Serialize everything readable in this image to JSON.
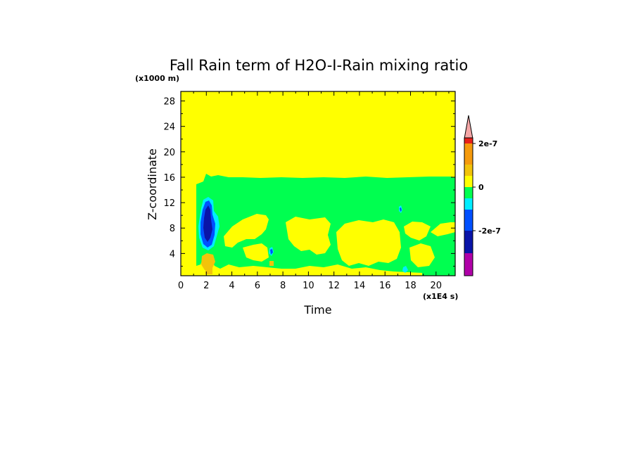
{
  "chart_data": {
    "type": "heatmap",
    "title": "Fall Rain term of H2O-I-Rain mixing ratio",
    "xlabel": "Time",
    "ylabel": "Z-coordinate",
    "x_unit": "(x1E4 s)",
    "y_unit": "(x1000 m)",
    "xlim": [
      0,
      21.5
    ],
    "ylim": [
      0.5,
      29.5
    ],
    "x_ticks": [
      "0",
      "2",
      "4",
      "6",
      "8",
      "10",
      "12",
      "14",
      "16",
      "18",
      "20"
    ],
    "y_ticks": [
      "4",
      "8",
      "12",
      "16",
      "20",
      "24",
      "28"
    ],
    "grid": false,
    "colorbar": {
      "labels": [
        {
          "text": "2e-7",
          "value": 2e-07
        },
        {
          "text": "0",
          "value": 0
        },
        {
          "text": "-2e-7",
          "value": -2e-07
        }
      ],
      "bands": [
        {
          "color": "#f4a6a6",
          "kind": "overflow-high"
        },
        {
          "color": "#e8201a",
          "kind": "high"
        },
        {
          "color": "#f59a0c",
          "kind": "positive"
        },
        {
          "color": "#f2c30a",
          "kind": "small-positive"
        },
        {
          "color": "#ffff00",
          "kind": "near-zero"
        },
        {
          "color": "#00ff50",
          "kind": "small-negative"
        },
        {
          "color": "#00eeff",
          "kind": "negative"
        },
        {
          "color": "#0050ff",
          "kind": "more-negative"
        },
        {
          "color": "#0a14a8",
          "kind": "strong-negative"
        },
        {
          "color": "#b000a8",
          "kind": "overflow-low"
        }
      ]
    },
    "field_description_regions": {
      "background": "#ffff00",
      "main_negative_layer": {
        "x": [
          1.3,
          21.5
        ],
        "z": [
          1.5,
          16.2
        ],
        "color": "#00ff50"
      },
      "core_region": {
        "x": [
          1.5,
          3.0
        ],
        "z": [
          3.8,
          12.6
        ],
        "colors": [
          "#00eeff",
          "#0050ff",
          "#0a14a8"
        ]
      }
    }
  }
}
